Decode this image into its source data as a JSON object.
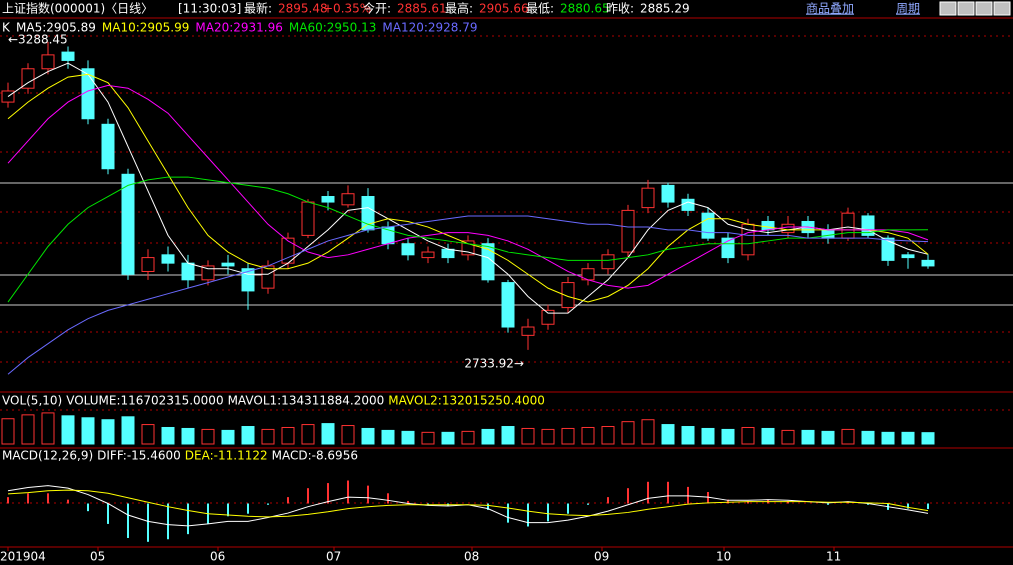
{
  "header": {
    "name": "上证指数(000001)〈日线〉",
    "time": "[11:30:03]",
    "latest_label": "最新:",
    "latest": "2895.48",
    "change": "+0.35%",
    "open_label": "今开:",
    "open": "2885.61",
    "high_label": "最高:",
    "high": "2905.66",
    "low_label": "最低:",
    "low": "2880.65",
    "prev_label": "昨收:",
    "prev": "2885.29",
    "overlay": "商品叠加",
    "period": "周期"
  },
  "chart_data": {
    "type": "candlestick",
    "k_label": "K",
    "xlim": [
      -0.4,
      50.25
    ],
    "xticks": [
      {
        "value": 0,
        "label": "201904"
      },
      {
        "value": 4.5,
        "label": "05"
      },
      {
        "value": 10.5,
        "label": "06"
      },
      {
        "value": 16.3,
        "label": "07"
      },
      {
        "value": 23.2,
        "label": "08"
      },
      {
        "value": 29.7,
        "label": "09"
      },
      {
        "value": 35.8,
        "label": "10"
      },
      {
        "value": 41.3,
        "label": "11"
      }
    ],
    "ylim": [
      2658,
      3299
    ],
    "up_color": "#ff3232",
    "down_color": "#54ffff",
    "max_label": "←3288.45",
    "min_label": "2733.92→",
    "open": [
      3180,
      3205,
      3240,
      3270,
      3240,
      3140,
      3050,
      2875,
      2905,
      2890,
      2860,
      2890,
      2880,
      2845,
      2890,
      2940,
      3010,
      2995,
      3010,
      2955,
      2925,
      2900,
      2915,
      2905,
      2925,
      2855,
      2760,
      2780,
      2810,
      2860,
      2880,
      2910,
      2990,
      3030,
      3005,
      2980,
      2935,
      2905,
      2965,
      2945,
      2965,
      2950,
      2935,
      2975,
      2935,
      2905,
      2895
    ],
    "close": [
      3200,
      3240,
      3265,
      3255,
      3150,
      3060,
      2870,
      2900,
      2890,
      2860,
      2885,
      2885,
      2840,
      2885,
      2935,
      3000,
      3000,
      3015,
      2950,
      2925,
      2905,
      2910,
      2900,
      2930,
      2860,
      2775,
      2775,
      2805,
      2855,
      2880,
      2905,
      2985,
      3025,
      3000,
      2985,
      2935,
      2900,
      2960,
      2950,
      2960,
      2945,
      2935,
      2980,
      2940,
      2895,
      2900,
      2885
    ],
    "high": [
      3215,
      3250,
      3288.45,
      3280,
      3255,
      3150,
      3060,
      2915,
      2920,
      2905,
      2895,
      2905,
      2890,
      2895,
      2945,
      3005,
      3020,
      3030,
      3025,
      2965,
      2935,
      2920,
      2925,
      2940,
      2935,
      2860,
      2790,
      2815,
      2865,
      2890,
      2915,
      2995,
      3040,
      3035,
      3015,
      2990,
      2945,
      2970,
      2975,
      2975,
      2975,
      2960,
      2990,
      2980,
      2940,
      2910,
      2906
    ],
    "low": [
      3170,
      3195,
      3230,
      3240,
      3140,
      3050,
      2860,
      2860,
      2875,
      2845,
      2850,
      2870,
      2806,
      2835,
      2880,
      2935,
      2985,
      2990,
      2945,
      2915,
      2895,
      2890,
      2890,
      2895,
      2855,
      2765,
      2733.92,
      2770,
      2800,
      2850,
      2870,
      2900,
      2980,
      2990,
      2975,
      2930,
      2890,
      2895,
      2940,
      2935,
      2935,
      2925,
      2930,
      2935,
      2885,
      2880,
      2880
    ],
    "series": [
      {
        "name": "MA5:2905.89",
        "color": "#ffffff",
        "values": [
          3190,
          3215,
          3235,
          3250,
          3230,
          3180,
          3100,
          3020,
          2940,
          2890,
          2880,
          2880,
          2870,
          2870,
          2890,
          2920,
          2950,
          2985,
          2990,
          2970,
          2950,
          2930,
          2915,
          2910,
          2900,
          2870,
          2830,
          2800,
          2800,
          2830,
          2860,
          2900,
          2950,
          2985,
          3000,
          2990,
          2960,
          2950,
          2945,
          2950,
          2955,
          2950,
          2955,
          2950,
          2930,
          2915,
          2905.89
        ]
      },
      {
        "name": "MA10:2905.99",
        "color": "#ffff00",
        "values": [
          3150,
          3180,
          3205,
          3225,
          3230,
          3215,
          3170,
          3110,
          3050,
          2990,
          2940,
          2910,
          2890,
          2880,
          2880,
          2890,
          2910,
          2935,
          2960,
          2970,
          2965,
          2955,
          2940,
          2925,
          2915,
          2895,
          2870,
          2845,
          2830,
          2820,
          2830,
          2850,
          2880,
          2920,
          2950,
          2970,
          2970,
          2960,
          2955,
          2950,
          2950,
          2950,
          2950,
          2950,
          2945,
          2935,
          2905.99
        ]
      },
      {
        "name": "MA20:2931.96",
        "color": "#ff00ff",
        "values": [
          3070,
          3110,
          3150,
          3180,
          3200,
          3210,
          3205,
          3185,
          3160,
          3120,
          3080,
          3040,
          3000,
          2960,
          2930,
          2910,
          2900,
          2905,
          2915,
          2925,
          2935,
          2940,
          2945,
          2945,
          2940,
          2930,
          2915,
          2895,
          2875,
          2860,
          2850,
          2845,
          2850,
          2870,
          2890,
          2910,
          2930,
          2945,
          2950,
          2955,
          2955,
          2950,
          2950,
          2950,
          2950,
          2945,
          2931.96
        ]
      },
      {
        "name": "MA60:2950.13",
        "color": "#00e600",
        "values": [
          2820,
          2870,
          2920,
          2960,
          2990,
          3010,
          3030,
          3040,
          3045,
          3045,
          3040,
          3035,
          3030,
          3025,
          3015,
          3000,
          2990,
          2975,
          2960,
          2950,
          2940,
          2935,
          2930,
          2925,
          2920,
          2910,
          2905,
          2900,
          2895,
          2895,
          2895,
          2900,
          2905,
          2915,
          2920,
          2925,
          2925,
          2925,
          2930,
          2935,
          2935,
          2940,
          2945,
          2945,
          2950,
          2950,
          2950.13
        ]
      },
      {
        "name": "MA120:2928.79",
        "color": "#6a6aff",
        "values": [
          2690,
          2720,
          2745,
          2770,
          2790,
          2805,
          2815,
          2825,
          2835,
          2845,
          2855,
          2865,
          2875,
          2885,
          2900,
          2915,
          2930,
          2940,
          2950,
          2955,
          2960,
          2965,
          2970,
          2975,
          2975,
          2975,
          2975,
          2970,
          2965,
          2960,
          2960,
          2955,
          2955,
          2950,
          2950,
          2945,
          2945,
          2940,
          2940,
          2940,
          2935,
          2935,
          2935,
          2935,
          2932,
          2930,
          2928.79
        ]
      }
    ],
    "vol_title": "VOL(5,10)",
    "vol_labels": [
      {
        "text": "VOLUME:116702315.0000",
        "color": "#ffffff"
      },
      {
        "text": "MAVOL1:134311884.2000",
        "color": "#ffffff"
      },
      {
        "text": "MAVOL2:132015250.4000",
        "color": "#ffff00"
      }
    ],
    "vol_ylim": [
      0,
      350000000
    ],
    "volume": [
      260000000.0,
      300000000.0,
      320000000.0,
      290000000.0,
      270000000.0,
      250000000.0,
      280000000.0,
      200000000.0,
      170000000.0,
      160000000.0,
      150000000.0,
      140000000.0,
      180000000.0,
      150000000.0,
      170000000.0,
      200000000.0,
      210000000.0,
      190000000.0,
      160000000.0,
      140000000.0,
      130000000.0,
      120000000.0,
      120000000.0,
      130000000.0,
      150000000.0,
      180000000.0,
      160000000.0,
      150000000.0,
      160000000.0,
      170000000.0,
      180000000.0,
      230000000.0,
      250000000.0,
      200000000.0,
      180000000.0,
      160000000.0,
      150000000.0,
      170000000.0,
      160000000.0,
      140000000.0,
      140000000.0,
      130000000.0,
      150000000.0,
      130000000.0,
      120000000.0,
      120000000.0,
      116702315
    ],
    "macd_title": "MACD(12,26,9)",
    "macd_ylim": [
      -65,
      65
    ],
    "macd_series": [
      {
        "name": "DIFF:-15.4600",
        "color": "#ffffff",
        "values": [
          20,
          25,
          28,
          24,
          14,
          0,
          -18,
          -28,
          -33,
          -35,
          -32,
          -28,
          -28,
          -22,
          -15,
          -5,
          3,
          10,
          9,
          5,
          0,
          -3,
          -4,
          -2,
          -8,
          -22,
          -30,
          -30,
          -26,
          -20,
          -12,
          -2,
          8,
          12,
          12,
          10,
          5,
          5,
          6,
          5,
          3,
          1,
          3,
          0,
          -5,
          -10,
          -15.46
        ]
      },
      {
        "name": "DEA:-11.1122",
        "color": "#ffff00",
        "values": [
          15,
          17,
          20,
          21,
          20,
          16,
          9,
          2,
          -5,
          -11,
          -16,
          -18,
          -20,
          -21,
          -20,
          -17,
          -13,
          -8,
          -5,
          -3,
          -2,
          -2,
          -2,
          -2,
          -3,
          -7,
          -12,
          -16,
          -18,
          -19,
          -17,
          -14,
          -9,
          -5,
          -1,
          1,
          2,
          3,
          3,
          3,
          3,
          2,
          2,
          1,
          0,
          -6,
          -11.1122
        ]
      }
    ],
    "macd_name": "MACD:-8.6956",
    "macd": [
      10,
      16,
      16,
      6,
      -12,
      -32,
      -54,
      -60,
      -56,
      -48,
      -32,
      -20,
      -16,
      -2,
      10,
      24,
      32,
      36,
      28,
      16,
      4,
      -2,
      -4,
      0,
      -10,
      -30,
      -36,
      -28,
      -16,
      -2,
      10,
      24,
      34,
      34,
      26,
      18,
      6,
      4,
      6,
      4,
      0,
      -2,
      2,
      -2,
      -10,
      -8,
      -8.6956
    ]
  }
}
